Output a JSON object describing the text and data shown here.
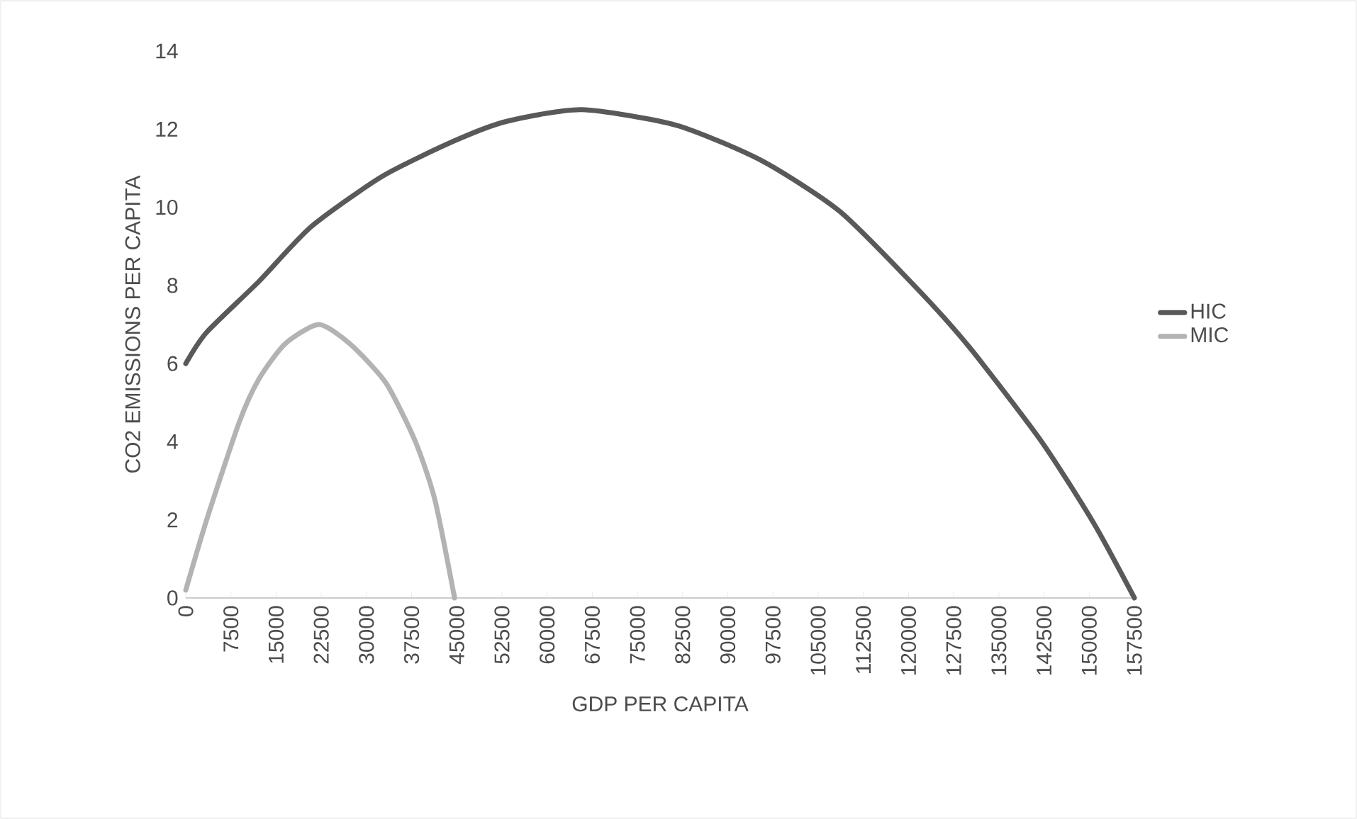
{
  "chart_data": {
    "type": "line",
    "xlabel": "GDP PER CAPITA",
    "ylabel": "CO2 EMISSIONS PER CAPITA",
    "xlim": [
      0,
      157500
    ],
    "ylim": [
      0,
      14
    ],
    "xticks": [
      0,
      7500,
      15000,
      22500,
      30000,
      37500,
      45000,
      52500,
      60000,
      67500,
      75000,
      82500,
      90000,
      97500,
      105000,
      112500,
      120000,
      127500,
      135000,
      142500,
      150000,
      157500
    ],
    "yticks": [
      0,
      2,
      4,
      6,
      8,
      10,
      12,
      14
    ],
    "grid": false,
    "legend": "right",
    "marker": "none",
    "line_style": "solid",
    "series": [
      {
        "name": "HIC",
        "color": "#595959",
        "x": [
          0,
          3470,
          12130,
          20800,
          32700,
          44600,
          53300,
          65750,
          81460,
          95540,
          108540,
          121540,
          130200,
          142100,
          150800,
          157500
        ],
        "values": [
          6.0,
          6.8,
          8.1,
          9.5,
          10.8,
          11.7,
          12.2,
          12.5,
          12.1,
          11.2,
          9.9,
          7.9,
          6.4,
          4.0,
          1.9,
          0
        ]
      },
      {
        "name": "MIC",
        "color": "#b3b3b3",
        "x": [
          0,
          3470,
          8880,
          12130,
          16460,
          22100,
          27300,
          33250,
          38130,
          41380,
          44630
        ],
        "values": [
          0.2,
          2.0,
          4.5,
          5.6,
          6.5,
          7.0,
          6.5,
          5.5,
          4.0,
          2.5,
          0
        ]
      }
    ]
  }
}
